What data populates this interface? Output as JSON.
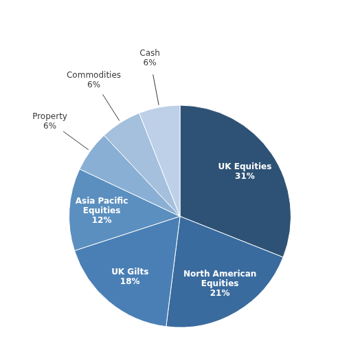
{
  "chart_data": {
    "type": "pie",
    "categories": [
      "UK Equities",
      "North American\nEquities",
      "UK Gilts",
      "Asia Pacific\nEquities",
      "Property",
      "Commodities",
      "Cash"
    ],
    "values": [
      31,
      21,
      18,
      12,
      6,
      6,
      6
    ],
    "value_labels": [
      "31%",
      "21%",
      "18%",
      "12%",
      "6%",
      "6%",
      "6%"
    ],
    "colors": [
      "#2e5275",
      "#3a6b9e",
      "#4a7fb5",
      "#5b8fbf",
      "#8aafd4",
      "#a4c0dc",
      "#bdd0e8"
    ],
    "data_labels": true
  }
}
